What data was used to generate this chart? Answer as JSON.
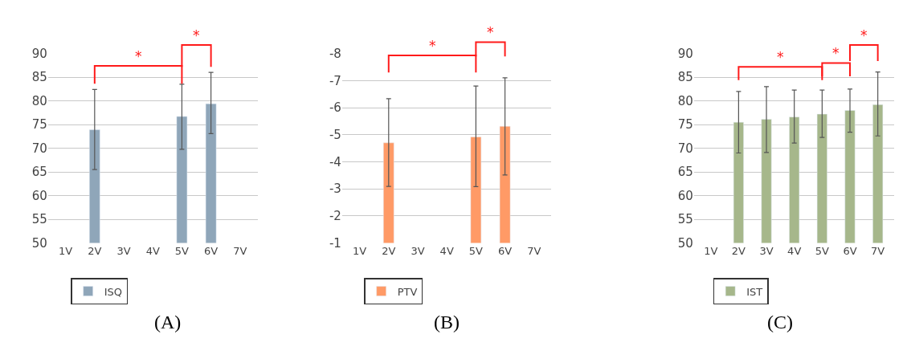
{
  "chart_data": [
    {
      "type": "bar",
      "categories": [
        "1V",
        "2V",
        "3V",
        "4V",
        "5V",
        "6V",
        "7V"
      ],
      "series": [
        {
          "name": "ISQ",
          "color": "#8fa6b9",
          "values": [
            null,
            73.9,
            null,
            null,
            76.7,
            79.4,
            null
          ],
          "errors": [
            null,
            [
              65.5,
              82.4
            ],
            null,
            null,
            [
              69.8,
              83.5
            ],
            [
              73.1,
              86.0
            ],
            null
          ]
        }
      ],
      "ylim": [
        50,
        90
      ],
      "yticks": [
        50,
        55,
        60,
        65,
        70,
        75,
        80,
        85,
        90
      ],
      "grid": "y",
      "legend": "bottom",
      "annotations": [
        "*",
        "*",
        "(A)"
      ]
    },
    {
      "type": "bar",
      "categories": [
        "1V",
        "2V",
        "3V",
        "4V",
        "5V",
        "6V",
        "7V"
      ],
      "series": [
        {
          "name": "PTV",
          "color": "#ff9a66",
          "values": [
            null,
            -4.7,
            null,
            null,
            -4.92,
            -5.31,
            null
          ],
          "errors": [
            null,
            [
              -3.09,
              -6.33
            ],
            null,
            null,
            [
              -3.08,
              -6.8
            ],
            [
              -3.51,
              -7.1
            ],
            null
          ]
        }
      ],
      "ylim": [
        -1,
        -8
      ],
      "yticks": [
        -1,
        -2,
        -3,
        -4,
        -5,
        -6,
        -7,
        -8
      ],
      "grid": "y",
      "legend": "bottom",
      "annotations": [
        "*",
        "*",
        "(B)"
      ]
    },
    {
      "type": "bar",
      "categories": [
        "1V",
        "2V",
        "3V",
        "4V",
        "5V",
        "6V",
        "7V"
      ],
      "series": [
        {
          "name": "IST",
          "color": "#a6b78b",
          "values": [
            null,
            75.5,
            76.1,
            76.6,
            77.2,
            78.0,
            79.2
          ],
          "errors": [
            null,
            [
              69.0,
              82.0
            ],
            [
              69.1,
              83.0
            ],
            [
              71.1,
              82.3
            ],
            [
              72.3,
              82.3
            ],
            [
              73.4,
              82.5
            ],
            [
              72.6,
              86.1
            ]
          ]
        }
      ],
      "ylim": [
        50,
        90
      ],
      "yticks": [
        50,
        55,
        60,
        65,
        70,
        75,
        80,
        85,
        90
      ],
      "grid": "y",
      "legend": "bottom",
      "annotations": [
        "*",
        "*",
        "*",
        "(C)"
      ]
    }
  ]
}
